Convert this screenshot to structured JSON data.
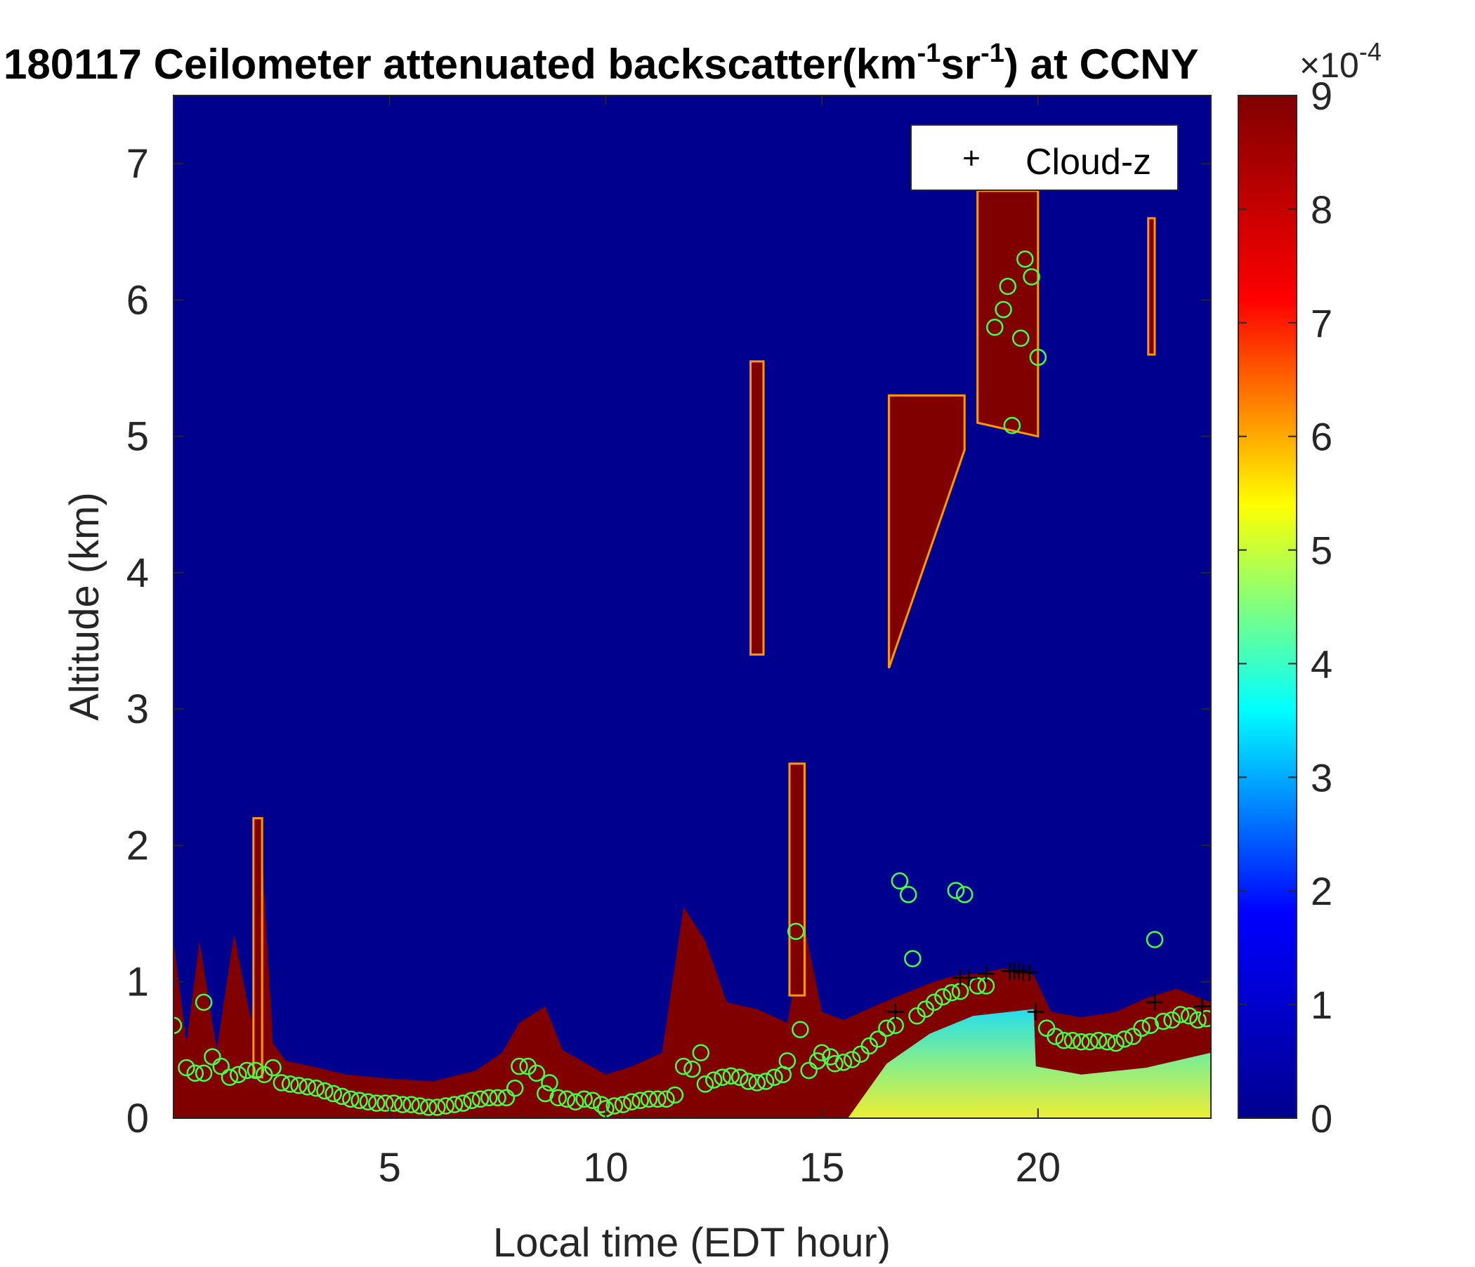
{
  "chart_data": {
    "type": "heatmap",
    "title_parts": {
      "prefix": "180117 Ceilometer attenuated backscatter(km",
      "sup1": "-1",
      "mid": "sr",
      "sup2": "-1",
      "suffix": ") at CCNY"
    },
    "xlabel": "Local time (EDT hour)",
    "ylabel": "Altitude (km)",
    "xlim": [
      0,
      24
    ],
    "ylim": [
      0,
      7.5
    ],
    "xticks": [
      5,
      10,
      15,
      20
    ],
    "yticks": [
      0,
      1,
      2,
      3,
      4,
      5,
      6,
      7
    ],
    "colorbar": {
      "colormap": "jet",
      "clim": [
        0,
        9
      ],
      "ticks": [
        0,
        1,
        2,
        3,
        4,
        5,
        6,
        7,
        8,
        9
      ],
      "exponent_base": "×10",
      "exponent": "-4",
      "stops": [
        "#00008f",
        "#0000ff",
        "#00ffff",
        "#ffff00",
        "#ff0000",
        "#800000"
      ]
    },
    "legend": {
      "position": "top-right",
      "entries": [
        {
          "marker": "+",
          "label": "Cloud-z"
        }
      ]
    },
    "layer_top_profile": [
      [
        0.0,
        1.3
      ],
      [
        0.3,
        0.55
      ],
      [
        0.6,
        1.3
      ],
      [
        1.0,
        0.5
      ],
      [
        1.4,
        1.35
      ],
      [
        1.8,
        0.7
      ],
      [
        2.0,
        2.2
      ],
      [
        2.3,
        0.55
      ],
      [
        2.6,
        0.42
      ],
      [
        3.2,
        0.38
      ],
      [
        4.0,
        0.32
      ],
      [
        5.0,
        0.29
      ],
      [
        6.0,
        0.27
      ],
      [
        7.0,
        0.35
      ],
      [
        7.6,
        0.48
      ],
      [
        8.0,
        0.7
      ],
      [
        8.6,
        0.82
      ],
      [
        9.0,
        0.5
      ],
      [
        10.0,
        0.32
      ],
      [
        10.6,
        0.38
      ],
      [
        11.3,
        0.48
      ],
      [
        11.8,
        1.55
      ],
      [
        12.3,
        1.3
      ],
      [
        12.8,
        0.85
      ],
      [
        13.5,
        0.8
      ],
      [
        14.2,
        0.7
      ],
      [
        14.6,
        1.4
      ],
      [
        15.0,
        0.78
      ],
      [
        15.5,
        0.72
      ],
      [
        16.2,
        0.82
      ],
      [
        16.8,
        0.9
      ],
      [
        17.5,
        0.99
      ],
      [
        18.0,
        1.04
      ],
      [
        18.8,
        1.07
      ],
      [
        19.2,
        1.1
      ],
      [
        19.5,
        1.08
      ],
      [
        19.9,
        1.05
      ],
      [
        20.3,
        0.78
      ],
      [
        21.0,
        0.74
      ],
      [
        21.8,
        0.78
      ],
      [
        22.5,
        0.88
      ],
      [
        23.2,
        0.95
      ],
      [
        24.0,
        0.85
      ]
    ],
    "high_clouds": [
      {
        "x0": 16.55,
        "x1": 18.3,
        "z0a": 3.3,
        "z0b": 4.9,
        "z1": 5.3
      },
      {
        "x0": 18.6,
        "x1": 20.0,
        "z0a": 5.1,
        "z0b": 5.0,
        "z1": 6.8
      },
      {
        "x0": 13.35,
        "x1": 13.65,
        "z0a": 3.4,
        "z0b": 3.4,
        "z1": 5.55
      },
      {
        "x0": 14.25,
        "x1": 14.6,
        "z0a": 0.9,
        "z0b": 0.9,
        "z1": 2.6
      },
      {
        "x0": 22.55,
        "x1": 22.7,
        "z0a": 5.6,
        "z0b": 5.6,
        "z1": 6.6
      },
      {
        "x0": 1.85,
        "x1": 2.05,
        "z0a": 0.3,
        "z0b": 0.3,
        "z1": 2.2
      }
    ],
    "cloud_z": [
      [
        16.7,
        0.78
      ],
      [
        18.2,
        1.03
      ],
      [
        18.4,
        1.03
      ],
      [
        18.8,
        1.06
      ],
      [
        19.35,
        1.08
      ],
      [
        19.45,
        1.08
      ],
      [
        19.55,
        1.08
      ],
      [
        19.65,
        1.07
      ],
      [
        19.8,
        1.07
      ],
      [
        19.95,
        0.78
      ],
      [
        22.7,
        0.85
      ],
      [
        23.8,
        0.82
      ]
    ],
    "mixing_height_circles": [
      [
        0.0,
        0.68
      ],
      [
        0.3,
        0.37
      ],
      [
        0.5,
        0.33
      ],
      [
        0.7,
        0.33
      ],
      [
        0.7,
        0.85
      ],
      [
        0.9,
        0.45
      ],
      [
        1.1,
        0.38
      ],
      [
        1.3,
        0.3
      ],
      [
        1.5,
        0.32
      ],
      [
        1.7,
        0.35
      ],
      [
        1.9,
        0.35
      ],
      [
        2.1,
        0.32
      ],
      [
        2.3,
        0.37
      ],
      [
        2.5,
        0.26
      ],
      [
        2.7,
        0.25
      ],
      [
        2.9,
        0.24
      ],
      [
        3.1,
        0.23
      ],
      [
        3.3,
        0.22
      ],
      [
        3.5,
        0.2
      ],
      [
        3.7,
        0.18
      ],
      [
        3.9,
        0.16
      ],
      [
        4.1,
        0.14
      ],
      [
        4.3,
        0.13
      ],
      [
        4.5,
        0.12
      ],
      [
        4.7,
        0.11
      ],
      [
        4.9,
        0.11
      ],
      [
        5.1,
        0.11
      ],
      [
        5.3,
        0.1
      ],
      [
        5.5,
        0.1
      ],
      [
        5.7,
        0.09
      ],
      [
        5.9,
        0.08
      ],
      [
        6.1,
        0.08
      ],
      [
        6.3,
        0.09
      ],
      [
        6.5,
        0.1
      ],
      [
        6.7,
        0.11
      ],
      [
        6.9,
        0.13
      ],
      [
        7.1,
        0.14
      ],
      [
        7.3,
        0.15
      ],
      [
        7.5,
        0.15
      ],
      [
        7.7,
        0.15
      ],
      [
        7.9,
        0.22
      ],
      [
        8.0,
        0.38
      ],
      [
        8.2,
        0.38
      ],
      [
        8.4,
        0.33
      ],
      [
        8.6,
        0.18
      ],
      [
        8.7,
        0.26
      ],
      [
        8.9,
        0.15
      ],
      [
        9.1,
        0.14
      ],
      [
        9.3,
        0.12
      ],
      [
        9.5,
        0.14
      ],
      [
        9.7,
        0.13
      ],
      [
        9.9,
        0.1
      ],
      [
        10.0,
        0.07
      ],
      [
        10.2,
        0.09
      ],
      [
        10.4,
        0.1
      ],
      [
        10.6,
        0.12
      ],
      [
        10.8,
        0.13
      ],
      [
        11.0,
        0.14
      ],
      [
        11.2,
        0.14
      ],
      [
        11.4,
        0.14
      ],
      [
        11.6,
        0.17
      ],
      [
        11.8,
        0.38
      ],
      [
        12.0,
        0.36
      ],
      [
        12.2,
        0.48
      ],
      [
        12.3,
        0.25
      ],
      [
        12.5,
        0.28
      ],
      [
        12.7,
        0.3
      ],
      [
        12.9,
        0.31
      ],
      [
        13.1,
        0.3
      ],
      [
        13.3,
        0.27
      ],
      [
        13.5,
        0.26
      ],
      [
        13.7,
        0.27
      ],
      [
        13.9,
        0.3
      ],
      [
        14.1,
        0.32
      ],
      [
        14.2,
        0.42
      ],
      [
        14.4,
        1.37
      ],
      [
        14.5,
        0.65
      ],
      [
        14.7,
        0.35
      ],
      [
        14.9,
        0.42
      ],
      [
        15.0,
        0.48
      ],
      [
        15.2,
        0.45
      ],
      [
        15.3,
        0.4
      ],
      [
        15.5,
        0.41
      ],
      [
        15.7,
        0.43
      ],
      [
        15.9,
        0.47
      ],
      [
        16.1,
        0.53
      ],
      [
        16.3,
        0.58
      ],
      [
        16.5,
        0.66
      ],
      [
        16.7,
        0.68
      ],
      [
        16.8,
        1.74
      ],
      [
        17.0,
        1.64
      ],
      [
        17.1,
        1.17
      ],
      [
        17.2,
        0.75
      ],
      [
        17.4,
        0.8
      ],
      [
        17.6,
        0.85
      ],
      [
        17.8,
        0.89
      ],
      [
        18.0,
        0.92
      ],
      [
        18.2,
        0.93
      ],
      [
        18.1,
        1.67
      ],
      [
        18.3,
        1.64
      ],
      [
        18.6,
        0.97
      ],
      [
        18.8,
        0.97
      ],
      [
        19.0,
        5.8
      ],
      [
        19.2,
        5.93
      ],
      [
        19.3,
        6.1
      ],
      [
        19.4,
        5.08
      ],
      [
        19.6,
        5.72
      ],
      [
        19.7,
        6.3
      ],
      [
        19.85,
        6.17
      ],
      [
        20.0,
        5.58
      ],
      [
        20.2,
        0.66
      ],
      [
        20.4,
        0.6
      ],
      [
        20.6,
        0.57
      ],
      [
        20.8,
        0.57
      ],
      [
        21.0,
        0.56
      ],
      [
        21.2,
        0.56
      ],
      [
        21.4,
        0.57
      ],
      [
        21.6,
        0.56
      ],
      [
        21.8,
        0.55
      ],
      [
        22.0,
        0.58
      ],
      [
        22.2,
        0.6
      ],
      [
        22.4,
        0.66
      ],
      [
        22.6,
        0.68
      ],
      [
        22.7,
        1.31
      ],
      [
        22.9,
        0.71
      ],
      [
        23.1,
        0.72
      ],
      [
        23.3,
        0.76
      ],
      [
        23.5,
        0.75
      ],
      [
        23.7,
        0.72
      ],
      [
        23.9,
        0.73
      ]
    ]
  }
}
